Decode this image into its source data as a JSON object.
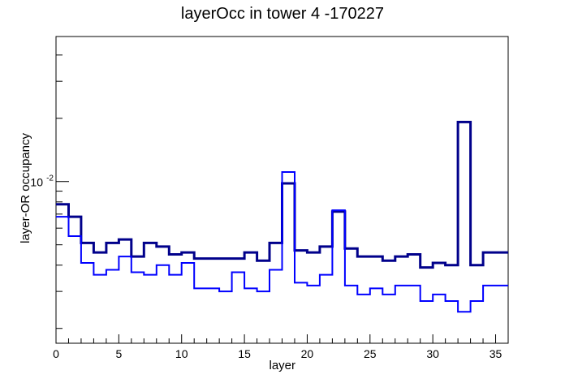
{
  "chart_data": {
    "type": "histogram",
    "title": "layerOcc in tower 4 -170227",
    "xlabel": "layer",
    "ylabel": "layer-OR occupancy",
    "xlim": [
      0,
      36
    ],
    "x_ticks": [
      0,
      5,
      10,
      15,
      20,
      25,
      30,
      35
    ],
    "y_scale": "log",
    "ylim": [
      0.0017,
      0.049
    ],
    "y_tick_labels": [
      {
        "value": 0.01,
        "base": "10",
        "exponent": "-2"
      }
    ],
    "bin_edges": [
      0,
      1,
      2,
      3,
      4,
      5,
      6,
      7,
      8,
      9,
      10,
      11,
      12,
      13,
      14,
      15,
      16,
      17,
      18,
      19,
      20,
      21,
      22,
      23,
      24,
      25,
      26,
      27,
      28,
      29,
      30,
      31,
      32,
      33,
      34,
      35,
      36
    ],
    "series": [
      {
        "color": "#00008b",
        "line_width": 3,
        "values": [
          0.0078,
          0.0068,
          0.0051,
          0.0046,
          0.0051,
          0.0053,
          0.0044,
          0.0051,
          0.0049,
          0.0045,
          0.0046,
          0.0043,
          0.0043,
          0.0043,
          0.0043,
          0.0046,
          0.0042,
          0.0051,
          0.0098,
          0.0047,
          0.0046,
          0.0049,
          0.0072,
          0.0048,
          0.0044,
          0.0044,
          0.0042,
          0.0044,
          0.0045,
          0.0039,
          0.0041,
          0.004,
          0.0192,
          0.004,
          0.0046,
          0.0046
        ]
      },
      {
        "color": "#0000ff",
        "line_width": 2,
        "values": [
          0.0068,
          0.0055,
          0.0041,
          0.0036,
          0.0038,
          0.0044,
          0.0037,
          0.0036,
          0.004,
          0.0036,
          0.0041,
          0.0031,
          0.0031,
          0.003,
          0.0037,
          0.0031,
          0.003,
          0.0038,
          0.0111,
          0.0033,
          0.0032,
          0.0036,
          0.0073,
          0.0032,
          0.0029,
          0.0031,
          0.0029,
          0.0032,
          0.0032,
          0.0027,
          0.0029,
          0.0027,
          0.0024,
          0.0027,
          0.0032,
          0.0032
        ]
      }
    ]
  }
}
